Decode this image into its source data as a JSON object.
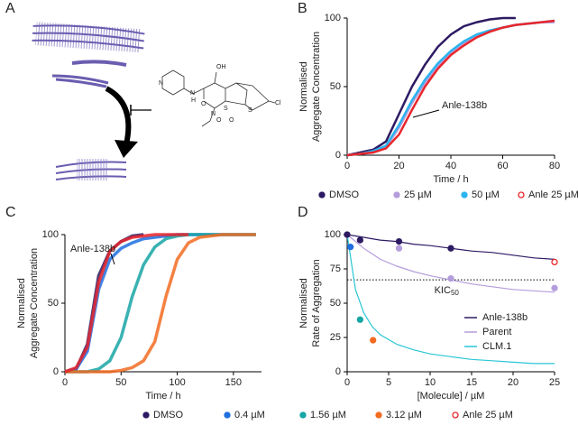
{
  "diagram": {
    "panel": "A",
    "atom_labels": [
      "OH",
      "N",
      "H",
      "N",
      "O",
      "N",
      "S",
      "O",
      "O",
      "S",
      "Cl"
    ]
  },
  "chart_data": [
    {
      "type": "line",
      "panel": "B",
      "x_label": "Time / h",
      "y_label": [
        "Normalised",
        "Aggregate Concentration"
      ],
      "xlim": [
        0,
        80
      ],
      "ylim": [
        0,
        100
      ],
      "xticks": [
        0,
        20,
        40,
        60,
        80
      ],
      "yticks": [
        0,
        50,
        100
      ],
      "x": [
        0,
        5,
        10,
        15,
        20,
        25,
        30,
        35,
        40,
        45,
        50,
        55,
        60,
        65,
        70,
        75,
        80
      ],
      "series": [
        {
          "name": "DMSO",
          "color": "#2d1a63",
          "marker": "filled",
          "values": [
            0,
            2,
            4,
            10,
            30,
            50,
            66,
            79,
            88,
            94,
            97,
            99,
            100,
            100,
            null,
            null,
            null
          ]
        },
        {
          "name": "25 µM",
          "color": "#b49ddc",
          "marker": "filled",
          "values": [
            0,
            1,
            2,
            6,
            20,
            38,
            53,
            65,
            75,
            82,
            87,
            90,
            93,
            95,
            96,
            97,
            97
          ]
        },
        {
          "name": "50 µM",
          "color": "#2ab4ef",
          "marker": "filled",
          "values": [
            0,
            1,
            3,
            7,
            22,
            40,
            55,
            67,
            76,
            83,
            88,
            91,
            93,
            95,
            96,
            97,
            98
          ]
        },
        {
          "name": "Anle 25 µM",
          "color": "#e8262b",
          "marker": "open",
          "values": [
            0,
            1,
            2,
            5,
            15,
            33,
            50,
            63,
            73,
            80,
            86,
            90,
            93,
            95,
            96,
            97,
            98
          ]
        }
      ],
      "annotation": "Anle-138b"
    },
    {
      "type": "line",
      "panel": "C",
      "x_label": "Time / h",
      "y_label": [
        "Normalised",
        "Aggregate Concentration"
      ],
      "xlim": [
        0,
        175
      ],
      "ylim": [
        0,
        100
      ],
      "xticks": [
        0,
        50,
        100,
        150
      ],
      "yticks": [
        0,
        50,
        100
      ],
      "x": [
        0,
        10,
        20,
        30,
        40,
        50,
        60,
        70,
        80,
        90,
        100,
        110,
        120,
        130,
        140,
        150,
        160,
        170
      ],
      "series": [
        {
          "name": "DMSO",
          "color": "#2d1a63",
          "marker": "filled",
          "values": [
            0,
            2,
            20,
            70,
            88,
            95,
            99,
            100,
            null,
            null,
            null,
            null,
            null,
            null,
            null,
            null,
            null,
            null
          ]
        },
        {
          "name": "0.4 µM",
          "color": "#1f6fe0",
          "marker": "filled",
          "values": [
            0,
            2,
            15,
            60,
            82,
            90,
            94,
            97,
            98,
            99,
            100,
            100,
            100,
            100,
            100,
            100,
            100,
            100
          ]
        },
        {
          "name": "1.56 µM",
          "color": "#17a5a5",
          "marker": "filled",
          "values": [
            0,
            0,
            0,
            2,
            8,
            25,
            55,
            78,
            91,
            97,
            99,
            100,
            100,
            100,
            100,
            100,
            100,
            100
          ]
        },
        {
          "name": "3.12 µM",
          "color": "#f26b21",
          "marker": "filled",
          "values": [
            0,
            0,
            0,
            0,
            0,
            1,
            3,
            8,
            22,
            55,
            82,
            94,
            98,
            99,
            100,
            100,
            100,
            100
          ]
        },
        {
          "name": "Anle 25 µM",
          "color": "#e8262b",
          "marker": "open",
          "values": [
            0,
            3,
            18,
            65,
            88,
            95,
            98,
            99,
            100,
            100,
            100,
            100,
            null,
            null,
            null,
            null,
            null,
            null
          ]
        }
      ],
      "annotation": "Anle-138b"
    },
    {
      "type": "scatter",
      "panel": "D",
      "x_label": "[Molecule] / µM",
      "y_label": [
        "Normalised",
        "Rate of Aggregation"
      ],
      "xlim": [
        0,
        25
      ],
      "ylim": [
        0,
        100
      ],
      "xticks": [
        0,
        5,
        10,
        15,
        20,
        25
      ],
      "yticks": [
        0,
        25,
        50,
        75,
        100
      ],
      "points": {
        "x": [
          0,
          0.4,
          1.56,
          3.12,
          1.56,
          6.25,
          12.5,
          6.25,
          12.5,
          25,
          25
        ],
        "y": [
          100,
          91,
          38,
          23,
          96,
          95,
          90,
          90,
          68,
          61,
          80
        ],
        "colors": [
          "#2d1a63",
          "#1f6fe0",
          "#17a5a5",
          "#f26b21",
          "#2d1a63",
          "#2d1a63",
          "#2d1a63",
          "#b49ddc",
          "#b49ddc",
          "#b49ddc",
          "#e8262b"
        ],
        "open": [
          false,
          false,
          false,
          false,
          false,
          false,
          false,
          false,
          false,
          false,
          true
        ]
      },
      "fits": [
        {
          "name": "Anle-138b",
          "color": "#2d1a63",
          "x": [
            0,
            1,
            2,
            3,
            4,
            6,
            8,
            10,
            12.5,
            15,
            17.5,
            20,
            22.5,
            25
          ],
          "values": [
            100,
            99,
            98,
            97,
            96,
            95,
            93,
            92,
            90,
            88,
            87,
            85,
            83,
            82
          ]
        },
        {
          "name": "Parent",
          "color": "#b49ddc",
          "x": [
            0,
            1,
            2,
            3,
            4,
            6,
            8,
            10,
            12.5,
            15,
            17.5,
            20,
            22.5,
            25
          ],
          "values": [
            100,
            95,
            90,
            86,
            82,
            77,
            73,
            70,
            67,
            64,
            62,
            60,
            59,
            58
          ]
        },
        {
          "name": "CLM.1",
          "color": "#2ac6d6",
          "x": [
            0,
            1,
            2,
            3,
            4,
            6,
            8,
            10,
            12.5,
            15,
            17.5,
            20,
            22.5,
            25
          ],
          "values": [
            100,
            60,
            43,
            33,
            27,
            20,
            16,
            13,
            11,
            9,
            8,
            7,
            6,
            6
          ]
        }
      ],
      "reference_line": {
        "value": 67,
        "label": {
          "text": "KIC",
          "subscript": "50"
        }
      },
      "legend": "right"
    }
  ]
}
